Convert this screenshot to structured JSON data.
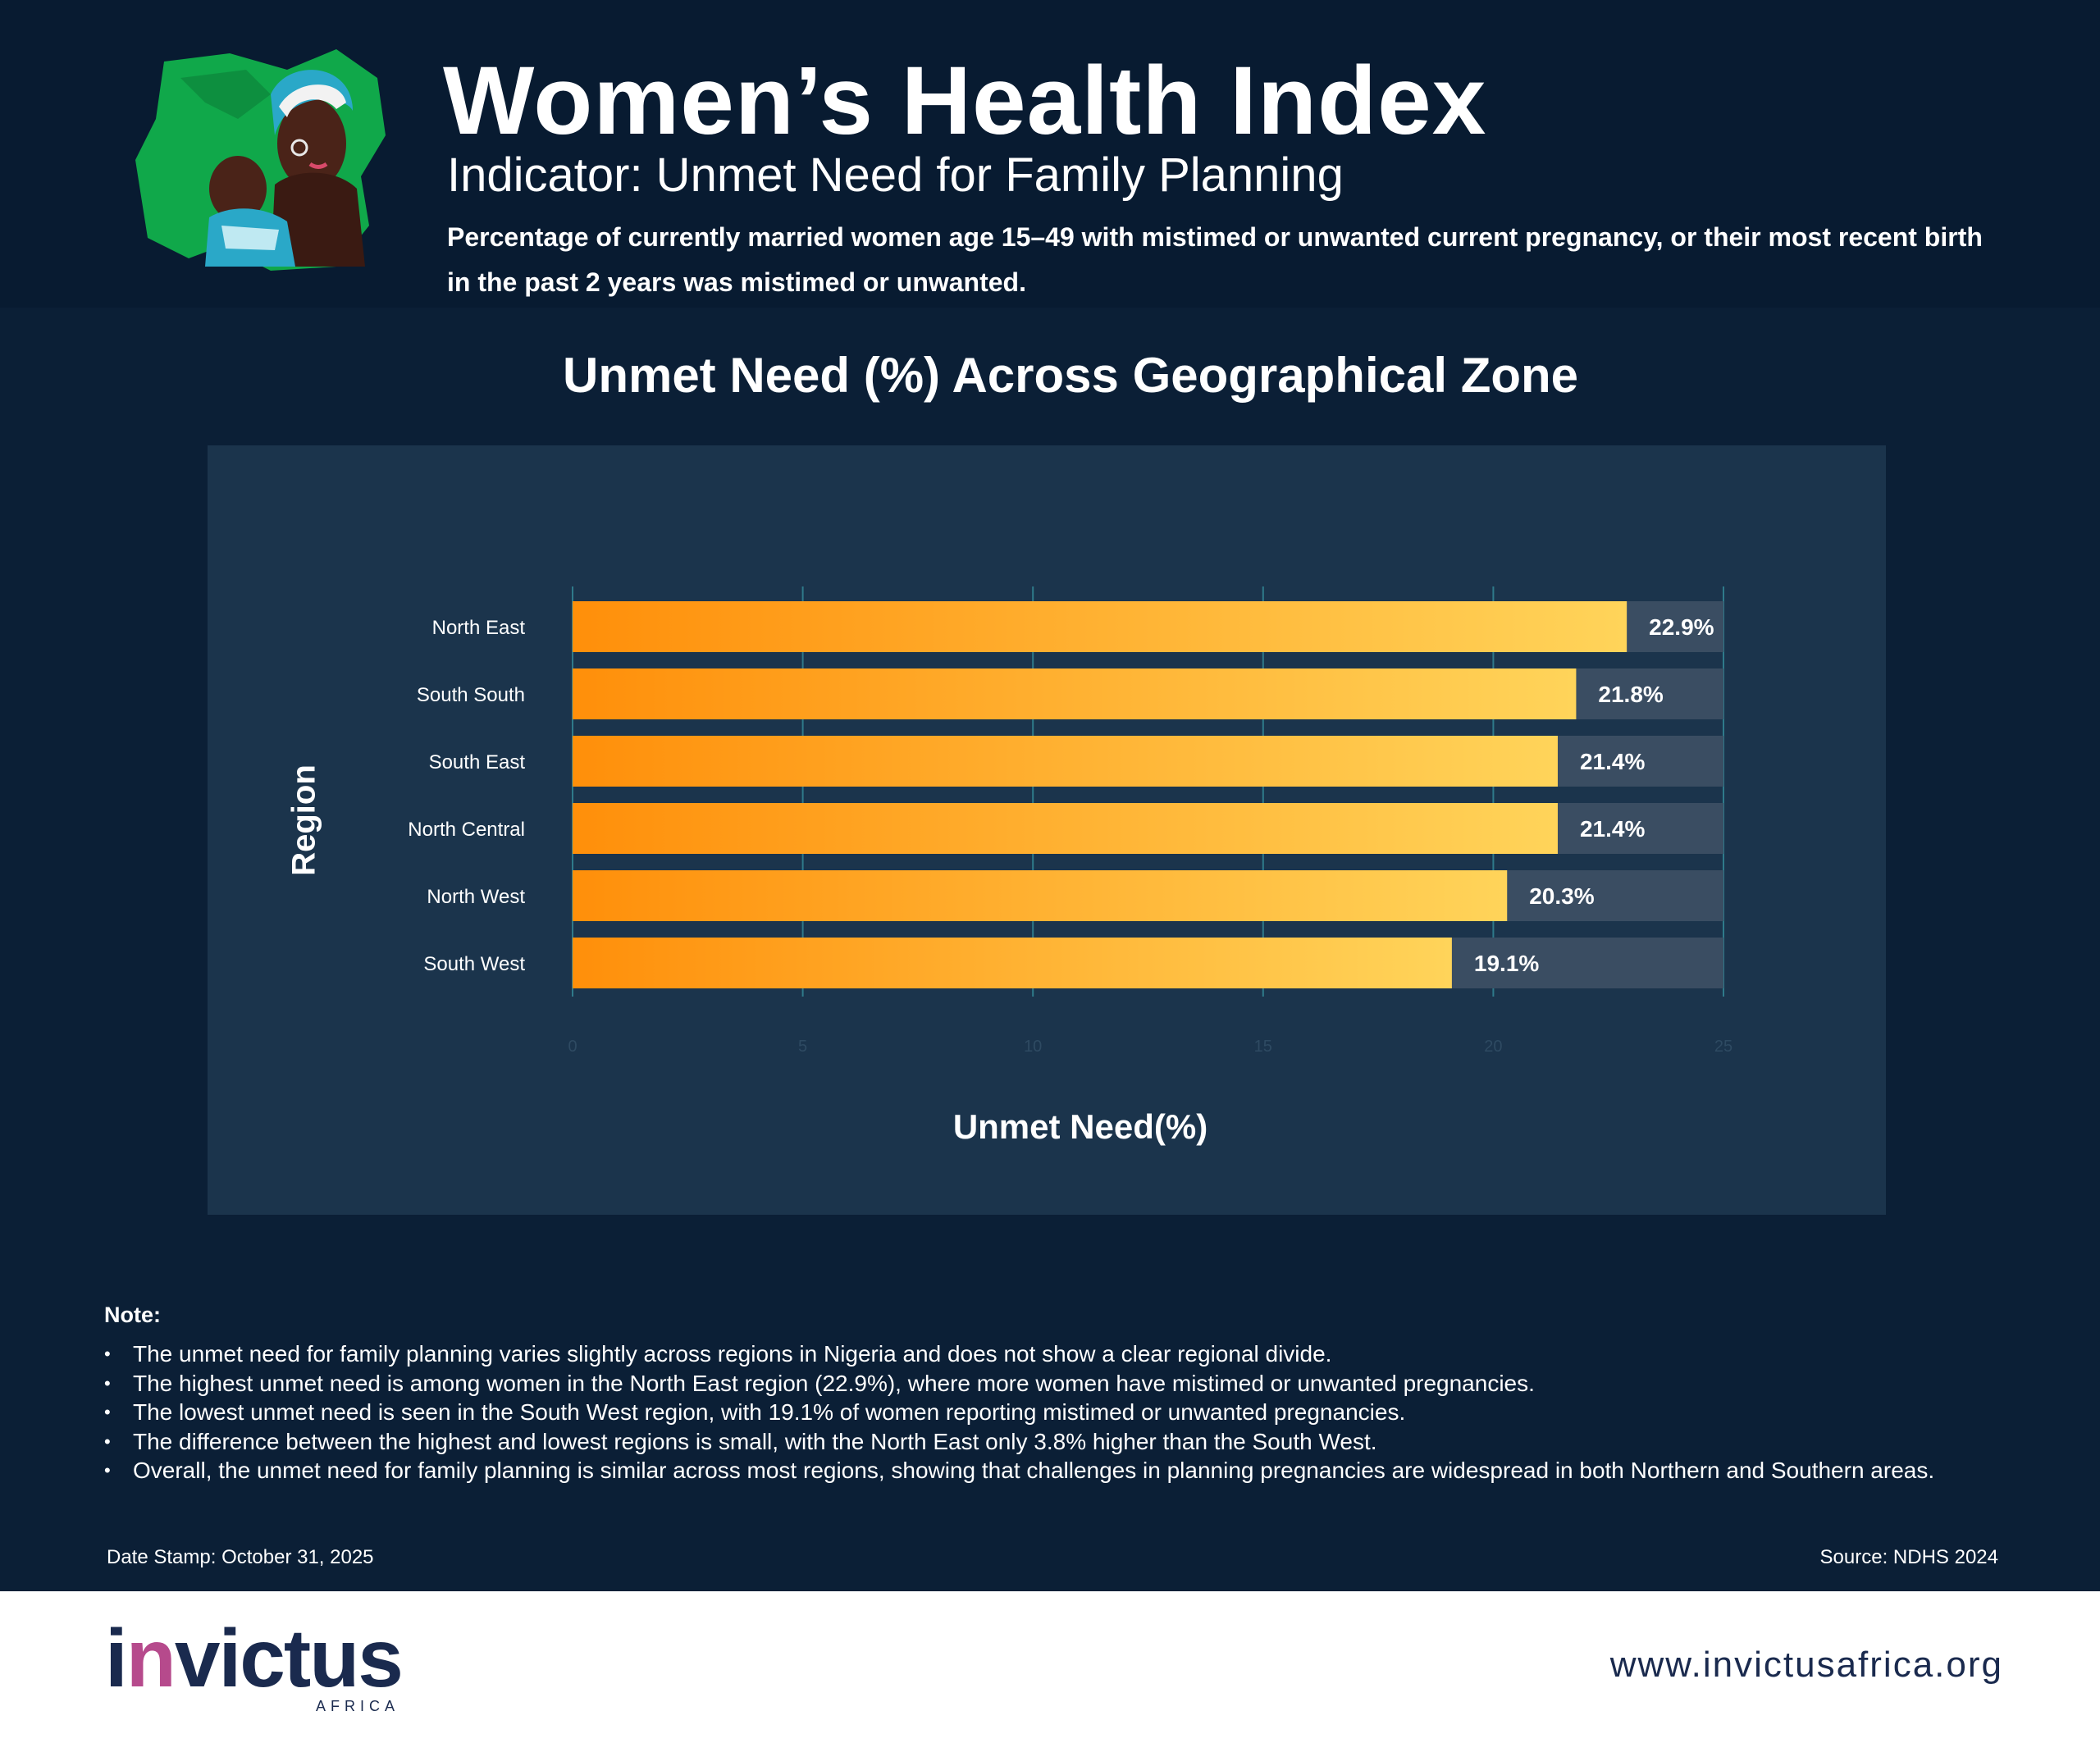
{
  "header": {
    "title": "Women’s Health Index",
    "subtitle": "Indicator: Unmet Need for Family Planning",
    "description": "Percentage of currently married women age 15–49 with mistimed or unwanted current pregnancy, or their most recent birth in the past 2 years was mistimed or unwanted."
  },
  "colors": {
    "background": "#0b1f36",
    "panel": "#1b344c",
    "bar_start": "#ff8f0a",
    "bar_end": "#ffd45a",
    "bar_track": "#3a4d62",
    "brand": "#1a2a4e",
    "brand_accent": "#b64a8c"
  },
  "chart_data": {
    "type": "bar",
    "orientation": "horizontal",
    "title": "Unmet Need (%) Across Geographical Zone",
    "xlabel": "Unmet Need(%)",
    "ylabel": "Region",
    "categories": [
      "North East",
      "South South",
      "South East",
      "North Central",
      "North West",
      "South West"
    ],
    "values": [
      22.9,
      21.8,
      21.4,
      21.4,
      20.3,
      19.1
    ],
    "value_labels": [
      "22.9%",
      "21.8%",
      "21.4%",
      "21.4%",
      "20.3%",
      "19.1%"
    ],
    "xlim": [
      0,
      25
    ],
    "xticks": [
      "0",
      "5",
      "10",
      "15",
      "20",
      "25"
    ],
    "grid": true
  },
  "notes": {
    "heading": "Note:",
    "items": [
      "The unmet need for family planning varies slightly across regions in Nigeria and does not show a clear regional divide.",
      "The highest unmet need is among women in the North East region (22.9%), where more women have mistimed or unwanted pregnancies.",
      "The lowest unmet need is seen in the South West region, with 19.1% of women reporting mistimed or unwanted pregnancies.",
      "The difference between the highest and lowest regions is small, with the North East only 3.8% higher than the South West.",
      "Overall, the unmet need for family planning is similar across most regions, showing that challenges in planning pregnancies are widespread in both Northern and Southern areas."
    ]
  },
  "meta": {
    "date_stamp": "Date Stamp: October 31, 2025",
    "source": "Source: NDHS 2024"
  },
  "footer": {
    "brand_logo": "invictus",
    "brand_sub": "AFRICA",
    "url": "www.invictusafrica.org"
  },
  "illustration": "mother-and-child-on-nigeria-map-illustration"
}
